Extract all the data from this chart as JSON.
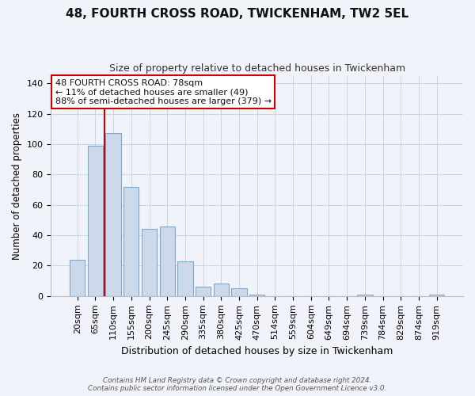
{
  "title": "48, FOURTH CROSS ROAD, TWICKENHAM, TW2 5EL",
  "subtitle": "Size of property relative to detached houses in Twickenham",
  "xlabel": "Distribution of detached houses by size in Twickenham",
  "ylabel": "Number of detached properties",
  "bar_labels": [
    "20sqm",
    "65sqm",
    "110sqm",
    "155sqm",
    "200sqm",
    "245sqm",
    "290sqm",
    "335sqm",
    "380sqm",
    "425sqm",
    "470sqm",
    "514sqm",
    "559sqm",
    "604sqm",
    "649sqm",
    "694sqm",
    "739sqm",
    "784sqm",
    "829sqm",
    "874sqm",
    "919sqm"
  ],
  "bar_values": [
    24,
    99,
    107,
    72,
    44,
    46,
    23,
    6,
    8,
    5,
    1,
    0,
    0,
    0,
    0,
    0,
    1,
    0,
    0,
    0,
    1
  ],
  "bar_color": "#ccd9ea",
  "bar_edge_color": "#7fa8cc",
  "vline_x": 1.5,
  "vline_color": "#cc0000",
  "ylim": [
    0,
    145
  ],
  "yticks": [
    0,
    20,
    40,
    60,
    80,
    100,
    120,
    140
  ],
  "annotation_title": "48 FOURTH CROSS ROAD: 78sqm",
  "annotation_line1": "← 11% of detached houses are smaller (49)",
  "annotation_line2": "88% of semi-detached houses are larger (379) →",
  "annotation_box_color": "#ffffff",
  "annotation_box_edge": "#cc0000",
  "footer_line1": "Contains HM Land Registry data © Crown copyright and database right 2024.",
  "footer_line2": "Contains public sector information licensed under the Open Government Licence v3.0.",
  "bg_color": "#f0f4fa"
}
